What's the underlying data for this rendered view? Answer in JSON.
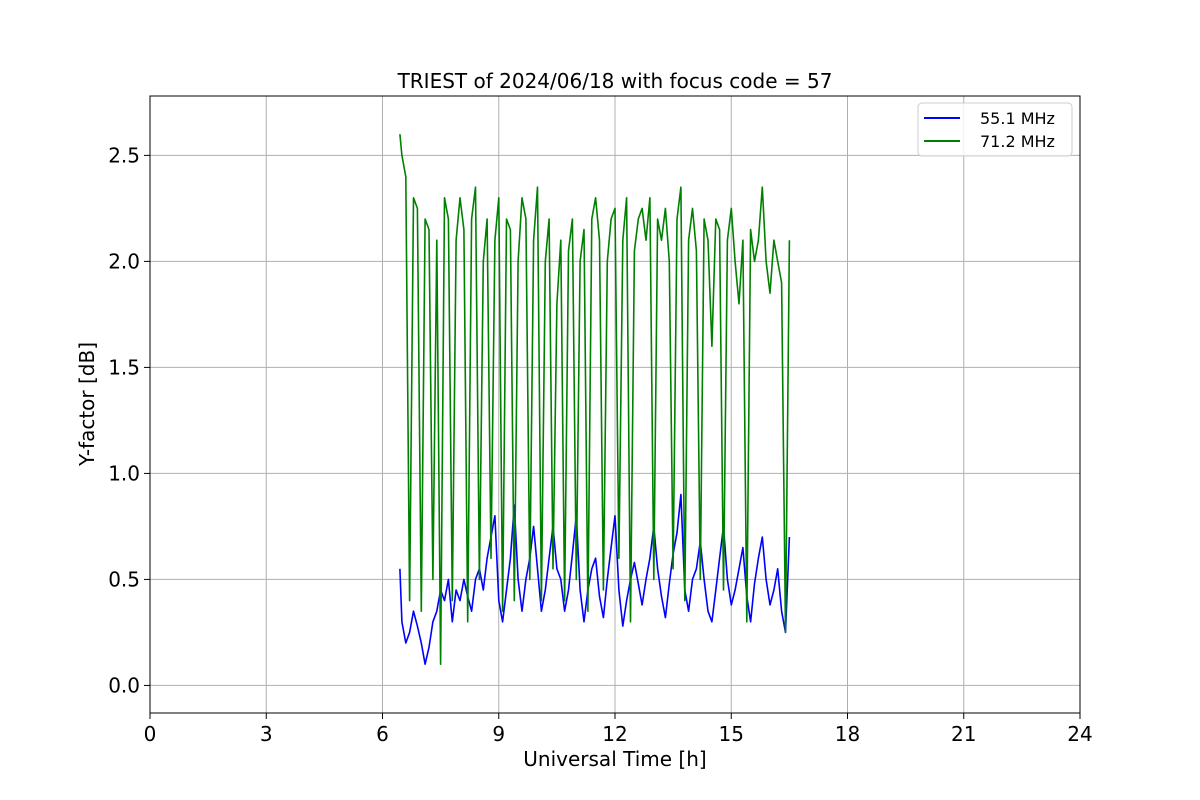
{
  "chart_data": {
    "type": "line",
    "title": "TRIEST of 2024/06/18 with focus code = 57",
    "xlabel": "Universal Time [h]",
    "ylabel": "Y-factor [dB]",
    "xlim": [
      0,
      24
    ],
    "ylim": [
      -0.13,
      2.78
    ],
    "xticks": [
      0,
      3,
      6,
      9,
      12,
      15,
      18,
      21,
      24
    ],
    "yticks": [
      0.0,
      0.5,
      1.0,
      1.5,
      2.0,
      2.5
    ],
    "xtick_labels": [
      "0",
      "3",
      "6",
      "9",
      "12",
      "15",
      "18",
      "21",
      "24"
    ],
    "ytick_labels": [
      "0.0",
      "0.5",
      "1.0",
      "1.5",
      "2.0",
      "2.5"
    ],
    "grid": true,
    "legend_position": "top-right",
    "series": [
      {
        "name": "55.1 MHz",
        "color": "#0000ff",
        "x": [
          6.45,
          6.5,
          6.6,
          6.7,
          6.8,
          6.9,
          7.0,
          7.1,
          7.2,
          7.3,
          7.4,
          7.5,
          7.6,
          7.7,
          7.8,
          7.9,
          8.0,
          8.1,
          8.2,
          8.3,
          8.4,
          8.5,
          8.6,
          8.7,
          8.8,
          8.9,
          9.0,
          9.1,
          9.2,
          9.3,
          9.4,
          9.5,
          9.6,
          9.7,
          9.8,
          9.9,
          10.0,
          10.1,
          10.2,
          10.3,
          10.4,
          10.5,
          10.6,
          10.7,
          10.8,
          10.9,
          11.0,
          11.1,
          11.2,
          11.3,
          11.4,
          11.5,
          11.6,
          11.7,
          11.8,
          11.9,
          12.0,
          12.1,
          12.2,
          12.3,
          12.4,
          12.5,
          12.6,
          12.7,
          12.8,
          12.9,
          13.0,
          13.1,
          13.2,
          13.3,
          13.4,
          13.5,
          13.6,
          13.7,
          13.8,
          13.9,
          14.0,
          14.1,
          14.2,
          14.3,
          14.4,
          14.5,
          14.6,
          14.7,
          14.8,
          14.9,
          15.0,
          15.1,
          15.2,
          15.3,
          15.4,
          15.5,
          15.6,
          15.7,
          15.8,
          15.9,
          16.0,
          16.1,
          16.2,
          16.3,
          16.4,
          16.5
        ],
        "y": [
          0.55,
          0.3,
          0.2,
          0.25,
          0.35,
          0.28,
          0.2,
          0.1,
          0.18,
          0.3,
          0.35,
          0.45,
          0.4,
          0.5,
          0.3,
          0.45,
          0.4,
          0.5,
          0.42,
          0.35,
          0.5,
          0.55,
          0.45,
          0.6,
          0.7,
          0.8,
          0.4,
          0.3,
          0.45,
          0.6,
          0.85,
          0.5,
          0.35,
          0.5,
          0.6,
          0.75,
          0.55,
          0.35,
          0.45,
          0.6,
          0.75,
          0.55,
          0.5,
          0.35,
          0.45,
          0.62,
          0.8,
          0.45,
          0.3,
          0.45,
          0.55,
          0.6,
          0.42,
          0.32,
          0.5,
          0.65,
          0.8,
          0.45,
          0.28,
          0.4,
          0.5,
          0.58,
          0.48,
          0.38,
          0.5,
          0.6,
          0.75,
          0.55,
          0.42,
          0.32,
          0.48,
          0.62,
          0.72,
          0.9,
          0.45,
          0.35,
          0.5,
          0.55,
          0.68,
          0.5,
          0.35,
          0.3,
          0.45,
          0.6,
          0.75,
          0.5,
          0.38,
          0.45,
          0.55,
          0.65,
          0.42,
          0.3,
          0.48,
          0.6,
          0.7,
          0.5,
          0.38,
          0.45,
          0.55,
          0.35,
          0.25,
          0.7
        ]
      },
      {
        "name": "71.2 MHz",
        "color": "#008000",
        "x": [
          6.45,
          6.5,
          6.6,
          6.7,
          6.8,
          6.9,
          7.0,
          7.1,
          7.2,
          7.3,
          7.4,
          7.5,
          7.6,
          7.7,
          7.8,
          7.9,
          8.0,
          8.1,
          8.2,
          8.3,
          8.4,
          8.5,
          8.6,
          8.7,
          8.8,
          8.9,
          9.0,
          9.1,
          9.2,
          9.3,
          9.4,
          9.5,
          9.6,
          9.7,
          9.8,
          9.9,
          10.0,
          10.1,
          10.2,
          10.3,
          10.4,
          10.5,
          10.6,
          10.7,
          10.8,
          10.9,
          11.0,
          11.1,
          11.2,
          11.3,
          11.4,
          11.5,
          11.6,
          11.7,
          11.8,
          11.9,
          12.0,
          12.1,
          12.2,
          12.3,
          12.4,
          12.5,
          12.6,
          12.7,
          12.8,
          12.9,
          13.0,
          13.1,
          13.2,
          13.3,
          13.4,
          13.5,
          13.6,
          13.7,
          13.8,
          13.9,
          14.0,
          14.1,
          14.2,
          14.3,
          14.4,
          14.5,
          14.6,
          14.7,
          14.8,
          14.9,
          15.0,
          15.1,
          15.2,
          15.3,
          15.4,
          15.5,
          15.6,
          15.7,
          15.8,
          15.9,
          16.0,
          16.1,
          16.2,
          16.3,
          16.4,
          16.5
        ],
        "y": [
          2.6,
          2.5,
          2.4,
          0.4,
          2.3,
          2.25,
          0.35,
          2.2,
          2.15,
          0.5,
          2.1,
          0.1,
          2.3,
          2.2,
          0.4,
          2.1,
          2.3,
          2.15,
          0.3,
          2.2,
          2.35,
          0.5,
          2.0,
          2.2,
          0.6,
          2.1,
          2.3,
          0.35,
          2.2,
          2.15,
          0.4,
          2.0,
          2.3,
          2.2,
          0.5,
          2.1,
          2.35,
          0.4,
          2.0,
          2.2,
          0.55,
          1.8,
          2.1,
          0.4,
          2.05,
          2.2,
          0.5,
          2.0,
          2.15,
          0.35,
          2.2,
          2.3,
          2.1,
          0.45,
          2.0,
          2.2,
          2.25,
          0.6,
          2.1,
          2.3,
          0.3,
          2.05,
          2.2,
          2.25,
          2.1,
          2.3,
          0.5,
          2.2,
          2.1,
          2.25,
          2.0,
          0.55,
          2.2,
          2.35,
          0.4,
          2.1,
          2.25,
          2.05,
          0.5,
          2.2,
          2.1,
          1.6,
          2.2,
          2.15,
          0.45,
          2.1,
          2.25,
          2.0,
          1.8,
          2.1,
          0.3,
          2.15,
          2.0,
          2.1,
          2.35,
          2.0,
          1.85,
          2.1,
          2.0,
          1.9,
          0.25,
          2.1
        ]
      }
    ]
  }
}
